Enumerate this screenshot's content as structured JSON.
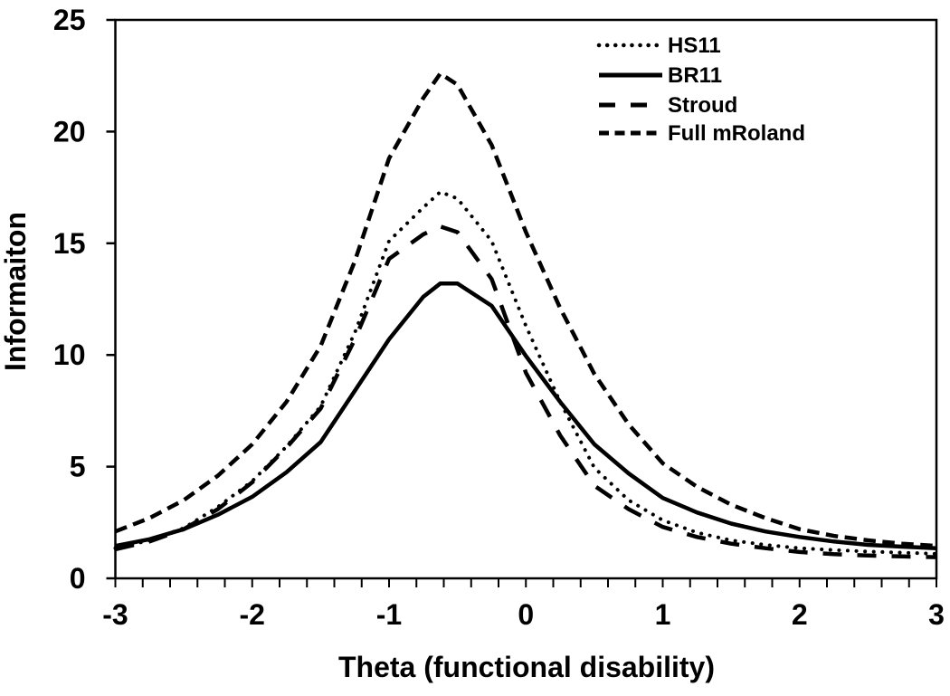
{
  "chart_data": {
    "type": "line",
    "title": "",
    "xlabel": "Theta (functional disability)",
    "ylabel": "Informaiton",
    "xlim": [
      -3,
      3
    ],
    "ylim": [
      0,
      25
    ],
    "x_ticks": [
      -3,
      -2,
      -1,
      0,
      1,
      2,
      3
    ],
    "x_minor_tick_step": 0.2,
    "y_ticks": [
      0,
      5,
      10,
      15,
      20,
      25
    ],
    "grid": false,
    "legend_position": "top-right-inside",
    "line_color": "#000000",
    "background_color": "#ffffff",
    "x": [
      -3,
      -2.75,
      -2.5,
      -2.25,
      -2,
      -1.75,
      -1.5,
      -1.25,
      -1,
      -0.75,
      -0.625,
      -0.5,
      -0.25,
      0,
      0.25,
      0.5,
      0.75,
      1,
      1.25,
      1.5,
      1.75,
      2,
      2.25,
      2.5,
      2.75,
      3
    ],
    "series": [
      {
        "name": "HS11",
        "style": "dotted",
        "values": [
          1.35,
          1.7,
          2.25,
          3.2,
          4.35,
          5.9,
          7.7,
          11.0,
          15.1,
          16.6,
          17.3,
          17.0,
          15.1,
          11.3,
          7.9,
          4.95,
          3.5,
          2.6,
          2.05,
          1.7,
          1.5,
          1.35,
          1.27,
          1.2,
          1.15,
          1.1
        ]
      },
      {
        "name": "BR11",
        "style": "solid",
        "values": [
          1.45,
          1.75,
          2.2,
          2.85,
          3.65,
          4.75,
          6.1,
          8.4,
          10.7,
          12.6,
          13.2,
          13.2,
          12.2,
          9.95,
          7.9,
          6.0,
          4.7,
          3.6,
          2.95,
          2.45,
          2.1,
          1.85,
          1.65,
          1.5,
          1.42,
          1.35
        ]
      },
      {
        "name": "Stroud",
        "style": "long-dash",
        "values": [
          1.3,
          1.65,
          2.2,
          3.1,
          4.3,
          5.85,
          7.6,
          10.7,
          14.3,
          15.4,
          15.75,
          15.5,
          13.4,
          9.2,
          6.4,
          4.15,
          3.1,
          2.3,
          1.85,
          1.55,
          1.35,
          1.18,
          1.08,
          1.02,
          0.98,
          0.95
        ]
      },
      {
        "name": "Full mRoland",
        "style": "short-dash",
        "values": [
          2.1,
          2.7,
          3.5,
          4.6,
          6.0,
          7.9,
          10.4,
          14.2,
          18.8,
          21.5,
          22.6,
          22.1,
          19.4,
          15.5,
          12.1,
          9.15,
          6.9,
          5.15,
          4.1,
          3.3,
          2.7,
          2.2,
          1.9,
          1.7,
          1.55,
          1.45
        ]
      }
    ]
  }
}
